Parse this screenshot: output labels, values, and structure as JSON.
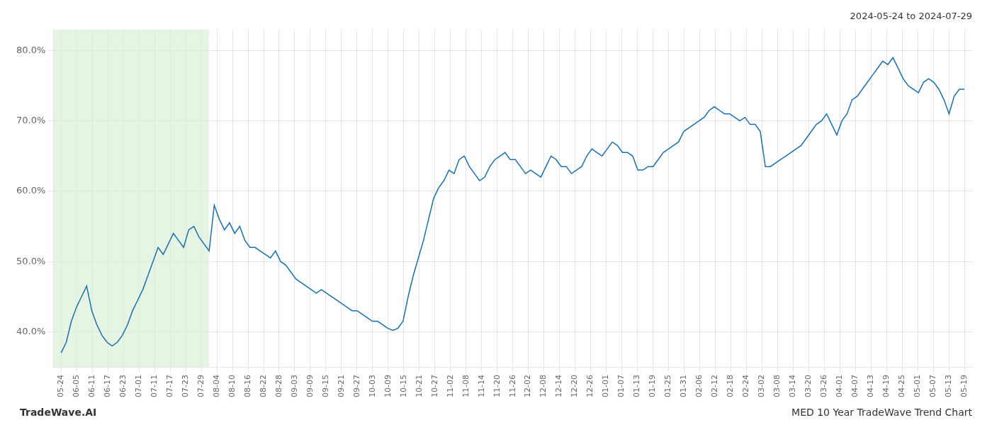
{
  "chart_data": {
    "type": "line",
    "title": "2024-05-24 to 2024-07-29",
    "annotations": [
      "TradeWave.AI",
      "MED 10 Year TradeWave Trend Chart"
    ],
    "color": "#1a6faf",
    "grid": true,
    "shaded_span": {
      "from": -0.5,
      "to": 9.5,
      "color": "#d6ecd2"
    },
    "xlim": [
      -0.5,
      58.5
    ],
    "xticks": [
      {
        "value": 0,
        "label": "05-24"
      },
      {
        "value": 1,
        "label": "06-05"
      },
      {
        "value": 2,
        "label": "06-11"
      },
      {
        "value": 3,
        "label": "06-17"
      },
      {
        "value": 4,
        "label": "06-23"
      },
      {
        "value": 5,
        "label": "07-01"
      },
      {
        "value": 6,
        "label": "07-11"
      },
      {
        "value": 7,
        "label": "07-17"
      },
      {
        "value": 8,
        "label": "07-23"
      },
      {
        "value": 9,
        "label": "07-29"
      },
      {
        "value": 10,
        "label": "08-04"
      },
      {
        "value": 11,
        "label": "08-10"
      },
      {
        "value": 12,
        "label": "08-16"
      },
      {
        "value": 13,
        "label": "08-22"
      },
      {
        "value": 14,
        "label": "08-28"
      },
      {
        "value": 15,
        "label": "09-03"
      },
      {
        "value": 16,
        "label": "09-09"
      },
      {
        "value": 17,
        "label": "09-15"
      },
      {
        "value": 18,
        "label": "09-21"
      },
      {
        "value": 19,
        "label": "09-27"
      },
      {
        "value": 20,
        "label": "10-03"
      },
      {
        "value": 21,
        "label": "10-09"
      },
      {
        "value": 22,
        "label": "10-15"
      },
      {
        "value": 23,
        "label": "10-21"
      },
      {
        "value": 24,
        "label": "10-27"
      },
      {
        "value": 25,
        "label": "11-02"
      },
      {
        "value": 26,
        "label": "11-08"
      },
      {
        "value": 27,
        "label": "11-14"
      },
      {
        "value": 28,
        "label": "11-20"
      },
      {
        "value": 29,
        "label": "11-26"
      },
      {
        "value": 30,
        "label": "12-02"
      },
      {
        "value": 31,
        "label": "12-08"
      },
      {
        "value": 32,
        "label": "12-14"
      },
      {
        "value": 33,
        "label": "12-20"
      },
      {
        "value": 34,
        "label": "12-26"
      },
      {
        "value": 35,
        "label": "01-01"
      },
      {
        "value": 36,
        "label": "01-07"
      },
      {
        "value": 37,
        "label": "01-13"
      },
      {
        "value": 38,
        "label": "01-19"
      },
      {
        "value": 39,
        "label": "01-25"
      },
      {
        "value": 40,
        "label": "01-31"
      },
      {
        "value": 41,
        "label": "02-06"
      },
      {
        "value": 42,
        "label": "02-12"
      },
      {
        "value": 43,
        "label": "02-18"
      },
      {
        "value": 44,
        "label": "02-24"
      },
      {
        "value": 45,
        "label": "03-02"
      },
      {
        "value": 46,
        "label": "03-08"
      },
      {
        "value": 47,
        "label": "03-14"
      },
      {
        "value": 48,
        "label": "03-20"
      },
      {
        "value": 49,
        "label": "03-26"
      },
      {
        "value": 50,
        "label": "04-01"
      },
      {
        "value": 51,
        "label": "04-07"
      },
      {
        "value": 52,
        "label": "04-13"
      },
      {
        "value": 53,
        "label": "04-19"
      },
      {
        "value": 54,
        "label": "04-25"
      },
      {
        "value": 55,
        "label": "05-01"
      },
      {
        "value": 56,
        "label": "05-07"
      },
      {
        "value": 57,
        "label": "05-13"
      },
      {
        "value": 58,
        "label": "05-19"
      }
    ],
    "ylim": [
      35.0,
      83.0
    ],
    "yticks": [
      {
        "value": 40.0,
        "label": "40.0%"
      },
      {
        "value": 50.0,
        "label": "50.0%"
      },
      {
        "value": 60.0,
        "label": "60.0%"
      },
      {
        "value": 70.0,
        "label": "70.0%"
      },
      {
        "value": 80.0,
        "label": "80.0%"
      }
    ],
    "values": [
      37.0,
      38.5,
      41.5,
      43.5,
      45.0,
      46.5,
      43.0,
      41.0,
      39.5,
      38.5,
      38.0,
      38.5,
      39.5,
      41.0,
      43.0,
      44.5,
      46.0,
      48.0,
      50.0,
      52.0,
      51.0,
      52.5,
      54.0,
      53.0,
      52.0,
      54.5,
      55.0,
      53.5,
      52.5,
      51.5,
      58.0,
      56.0,
      54.5,
      55.5,
      54.0,
      55.0,
      53.0,
      52.0,
      52.0,
      51.5,
      51.0,
      50.5,
      51.5,
      50.0,
      49.5,
      48.5,
      47.5,
      47.0,
      46.5,
      46.0,
      45.5,
      46.0,
      45.5,
      45.0,
      44.5,
      44.0,
      43.5,
      43.0,
      43.0,
      42.5,
      42.0,
      41.5,
      41.5,
      41.0,
      40.5,
      40.2,
      40.5,
      41.5,
      45.0,
      48.0,
      50.5,
      53.0,
      56.0,
      59.0,
      60.5,
      61.5,
      63.0,
      62.5,
      64.5,
      65.0,
      63.5,
      62.5,
      61.5,
      62.0,
      63.5,
      64.5,
      65.0,
      65.5,
      64.5,
      64.5,
      63.5,
      62.5,
      63.0,
      62.5,
      62.0,
      63.5,
      65.0,
      64.5,
      63.5,
      63.5,
      62.5,
      63.0,
      63.5,
      65.0,
      66.0,
      65.5,
      65.0,
      66.0,
      67.0,
      66.5,
      65.5,
      65.5,
      65.0,
      63.0,
      63.0,
      63.5,
      63.5,
      64.5,
      65.5,
      66.0,
      66.5,
      67.0,
      68.5,
      69.0,
      69.5,
      70.0,
      70.5,
      71.5,
      72.0,
      71.5,
      71.0,
      71.0,
      70.5,
      70.0,
      70.5,
      69.5,
      69.5,
      68.5,
      63.5,
      63.5,
      64.0,
      64.5,
      65.0,
      65.5,
      66.0,
      66.5,
      67.5,
      68.5,
      69.5,
      70.0,
      71.0,
      69.5,
      68.0,
      70.0,
      71.0,
      73.0,
      73.5,
      74.5,
      75.5,
      76.5,
      77.5,
      78.5,
      78.0,
      79.0,
      77.5,
      76.0,
      75.0,
      74.5,
      74.0,
      75.5,
      76.0,
      75.5,
      74.5,
      73.0,
      71.0,
      73.5,
      74.5,
      74.5
    ]
  }
}
